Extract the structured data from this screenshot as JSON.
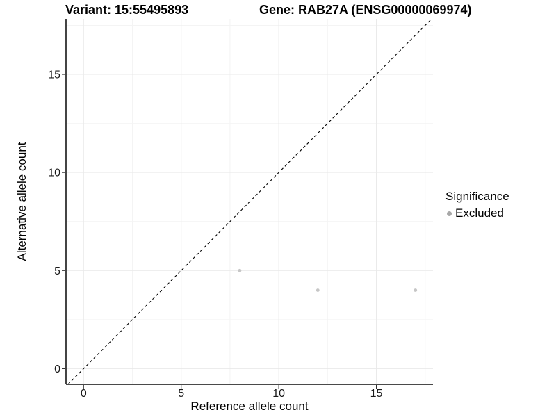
{
  "chart_data": {
    "type": "scatter",
    "title_variant": "Variant: 15:55495893",
    "title_gene": "Gene: RAB27A (ENSG00000069974)",
    "xlabel": "Reference allele count",
    "ylabel": "Alternative allele count",
    "xlim": [
      -0.9,
      17.9
    ],
    "ylim": [
      -0.8,
      17.8
    ],
    "x_ticks": [
      0,
      5,
      10,
      15
    ],
    "y_ticks": [
      0,
      5,
      10,
      15
    ],
    "x_minor_ticks": [
      2.5,
      7.5,
      12.5,
      17.5
    ],
    "y_minor_ticks": [
      2.5,
      7.5,
      12.5,
      17.5
    ],
    "grid": true,
    "identity_line": {
      "slope": 1,
      "intercept": 0,
      "style": "dashed",
      "color": "#000000"
    },
    "series": [
      {
        "name": "Excluded",
        "color": "#c6c6c6",
        "points": [
          [
            8,
            5
          ],
          [
            12,
            4
          ],
          [
            17,
            4
          ]
        ]
      }
    ],
    "legend": {
      "title": "Significance",
      "position": "right",
      "entries": [
        {
          "label": "Excluded",
          "color": "#a8a8a8"
        }
      ]
    },
    "colors": {
      "axis_line": "#303030",
      "grid_major": "#e9e9e9",
      "grid_minor": "#f4f4f4",
      "tick_label": "#1a1a1a"
    }
  }
}
